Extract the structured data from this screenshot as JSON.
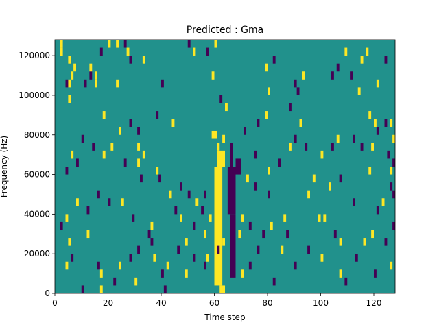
{
  "chart_data": {
    "type": "heatmap",
    "title": "Predicted : Gma",
    "xlabel": "Time step",
    "ylabel": "Frequency (Hz)",
    "xlim": [
      0,
      128
    ],
    "ylim": [
      0,
      128000
    ],
    "x_ticks": [
      0,
      20,
      40,
      60,
      80,
      100,
      120
    ],
    "y_ticks": [
      0,
      20000,
      40000,
      60000,
      80000,
      100000,
      120000
    ],
    "x_tick_labels": [
      "0",
      "20",
      "40",
      "60",
      "80",
      "100",
      "120"
    ],
    "y_tick_labels": [
      "0",
      "20000",
      "40000",
      "60000",
      "80000",
      "100000",
      "120000"
    ],
    "grid": false,
    "colors": {
      "background": "#21918c",
      "high": "#fde725",
      "low": "#440154"
    },
    "cell_height_hz": 4000,
    "value_levels": {
      "low": -1,
      "background": 0,
      "high": 1
    },
    "bands": [
      {
        "level": "high",
        "x": [
          60,
          63
        ],
        "y": [
          4000,
          64000
        ]
      },
      {
        "level": "high",
        "x": [
          61,
          64
        ],
        "y": [
          64000,
          72000
        ]
      },
      {
        "level": "high",
        "x": [
          62,
          64
        ],
        "y": [
          0,
          4000
        ]
      },
      {
        "level": "high",
        "x": [
          61,
          62
        ],
        "y": [
          72000,
          76000
        ]
      },
      {
        "level": "high",
        "x": [
          63,
          64
        ],
        "y": [
          76000,
          80000
        ]
      },
      {
        "level": "high",
        "x": [
          59,
          61
        ],
        "y": [
          78000,
          82000
        ]
      },
      {
        "level": "low",
        "x": [
          65,
          68
        ],
        "y": [
          40000,
          64000
        ]
      },
      {
        "level": "low",
        "x": [
          66,
          68
        ],
        "y": [
          8000,
          40000
        ]
      },
      {
        "level": "low",
        "x": [
          68,
          70
        ],
        "y": [
          60000,
          68000
        ]
      },
      {
        "level": "low",
        "x": [
          66,
          67
        ],
        "y": [
          64000,
          76000
        ]
      }
    ],
    "points": [
      {
        "x": 2,
        "y": 124000,
        "level": "high"
      },
      {
        "x": 2,
        "y": 120000,
        "level": "high"
      },
      {
        "x": 5,
        "y": 116000,
        "level": "high"
      },
      {
        "x": 7,
        "y": 112000,
        "level": "high"
      },
      {
        "x": 5,
        "y": 104000,
        "level": "high"
      },
      {
        "x": 6,
        "y": 108000,
        "level": "high"
      },
      {
        "x": 5,
        "y": 96000,
        "level": "high"
      },
      {
        "x": 4,
        "y": 104000,
        "level": "low"
      },
      {
        "x": 11,
        "y": 104000,
        "level": "low"
      },
      {
        "x": 15,
        "y": 104000,
        "level": "high"
      },
      {
        "x": 15,
        "y": 108000,
        "level": "high"
      },
      {
        "x": 23,
        "y": 104000,
        "level": "high"
      },
      {
        "x": 18,
        "y": 88000,
        "level": "high"
      },
      {
        "x": 13,
        "y": 108000,
        "level": "low"
      },
      {
        "x": 13,
        "y": 112000,
        "level": "high"
      },
      {
        "x": 20,
        "y": 124000,
        "level": "high"
      },
      {
        "x": 17,
        "y": 120000,
        "level": "low"
      },
      {
        "x": 23,
        "y": 124000,
        "level": "high"
      },
      {
        "x": 26,
        "y": 124000,
        "level": "low"
      },
      {
        "x": 27,
        "y": 120000,
        "level": "high"
      },
      {
        "x": 28,
        "y": 116000,
        "level": "low"
      },
      {
        "x": 33,
        "y": 116000,
        "level": "high"
      },
      {
        "x": 38,
        "y": 88000,
        "level": "low"
      },
      {
        "x": 24,
        "y": 80000,
        "level": "high"
      },
      {
        "x": 31,
        "y": 80000,
        "level": "low"
      },
      {
        "x": 28,
        "y": 84000,
        "level": "low"
      },
      {
        "x": 40,
        "y": 104000,
        "level": "low"
      },
      {
        "x": 44,
        "y": 84000,
        "level": "high"
      },
      {
        "x": 52,
        "y": 120000,
        "level": "high"
      },
      {
        "x": 50,
        "y": 124000,
        "level": "low"
      },
      {
        "x": 60,
        "y": 124000,
        "level": "high"
      },
      {
        "x": 57,
        "y": 120000,
        "level": "low"
      },
      {
        "x": 59,
        "y": 108000,
        "level": "high"
      },
      {
        "x": 64,
        "y": 92000,
        "level": "high"
      },
      {
        "x": 62,
        "y": 96000,
        "level": "low"
      },
      {
        "x": 79,
        "y": 112000,
        "level": "high"
      },
      {
        "x": 80,
        "y": 100000,
        "level": "high"
      },
      {
        "x": 82,
        "y": 116000,
        "level": "low"
      },
      {
        "x": 90,
        "y": 104000,
        "level": "low"
      },
      {
        "x": 93,
        "y": 108000,
        "level": "high"
      },
      {
        "x": 91,
        "y": 100000,
        "level": "low"
      },
      {
        "x": 88,
        "y": 92000,
        "level": "low"
      },
      {
        "x": 104,
        "y": 108000,
        "level": "low"
      },
      {
        "x": 106,
        "y": 112000,
        "level": "low"
      },
      {
        "x": 109,
        "y": 120000,
        "level": "high"
      },
      {
        "x": 111,
        "y": 108000,
        "level": "low"
      },
      {
        "x": 115,
        "y": 116000,
        "level": "high"
      },
      {
        "x": 117,
        "y": 120000,
        "level": "high"
      },
      {
        "x": 114,
        "y": 100000,
        "level": "high"
      },
      {
        "x": 118,
        "y": 88000,
        "level": "high"
      },
      {
        "x": 120,
        "y": 84000,
        "level": "high"
      },
      {
        "x": 124,
        "y": 84000,
        "level": "low"
      },
      {
        "x": 126,
        "y": 84000,
        "level": "high"
      },
      {
        "x": 124,
        "y": 116000,
        "level": "low"
      },
      {
        "x": 121,
        "y": 104000,
        "level": "high"
      },
      {
        "x": 10,
        "y": 76000,
        "level": "low"
      },
      {
        "x": 14,
        "y": 72000,
        "level": "low"
      },
      {
        "x": 18,
        "y": 68000,
        "level": "high"
      },
      {
        "x": 6,
        "y": 68000,
        "level": "high"
      },
      {
        "x": 8,
        "y": 64000,
        "level": "low"
      },
      {
        "x": 4,
        "y": 60000,
        "level": "low"
      },
      {
        "x": 21,
        "y": 72000,
        "level": "high"
      },
      {
        "x": 26,
        "y": 64000,
        "level": "low"
      },
      {
        "x": 31,
        "y": 64000,
        "level": "high"
      },
      {
        "x": 31,
        "y": 72000,
        "level": "high"
      },
      {
        "x": 33,
        "y": 68000,
        "level": "high"
      },
      {
        "x": 38,
        "y": 60000,
        "level": "high"
      },
      {
        "x": 32,
        "y": 56000,
        "level": "low"
      },
      {
        "x": 39,
        "y": 56000,
        "level": "low"
      },
      {
        "x": 43,
        "y": 48000,
        "level": "high"
      },
      {
        "x": 50,
        "y": 48000,
        "level": "low"
      },
      {
        "x": 47,
        "y": 52000,
        "level": "low"
      },
      {
        "x": 56,
        "y": 48000,
        "level": "low"
      },
      {
        "x": 45,
        "y": 40000,
        "level": "low"
      },
      {
        "x": 47,
        "y": 36000,
        "level": "high"
      },
      {
        "x": 55,
        "y": 40000,
        "level": "low"
      },
      {
        "x": 52,
        "y": 32000,
        "level": "low"
      },
      {
        "x": 56,
        "y": 28000,
        "level": "high"
      },
      {
        "x": 49,
        "y": 24000,
        "level": "high"
      },
      {
        "x": 46,
        "y": 20000,
        "level": "low"
      },
      {
        "x": 52,
        "y": 16000,
        "level": "low"
      },
      {
        "x": 57,
        "y": 16000,
        "level": "high"
      },
      {
        "x": 56,
        "y": 12000,
        "level": "low"
      },
      {
        "x": 49,
        "y": 8000,
        "level": "high"
      },
      {
        "x": 42,
        "y": 12000,
        "level": "high"
      },
      {
        "x": 40,
        "y": 8000,
        "level": "low"
      },
      {
        "x": 37,
        "y": 16000,
        "level": "high"
      },
      {
        "x": 36,
        "y": 24000,
        "level": "low"
      },
      {
        "x": 29,
        "y": 36000,
        "level": "low"
      },
      {
        "x": 25,
        "y": 44000,
        "level": "high"
      },
      {
        "x": 20,
        "y": 44000,
        "level": "low"
      },
      {
        "x": 16,
        "y": 48000,
        "level": "low"
      },
      {
        "x": 12,
        "y": 40000,
        "level": "low"
      },
      {
        "x": 8,
        "y": 44000,
        "level": "high"
      },
      {
        "x": 4,
        "y": 36000,
        "level": "high"
      },
      {
        "x": 2,
        "y": 32000,
        "level": "low"
      },
      {
        "x": 5,
        "y": 24000,
        "level": "high"
      },
      {
        "x": 4,
        "y": 12000,
        "level": "high"
      },
      {
        "x": 6,
        "y": 16000,
        "level": "low"
      },
      {
        "x": 16,
        "y": 12000,
        "level": "low"
      },
      {
        "x": 17,
        "y": 8000,
        "level": "high"
      },
      {
        "x": 22,
        "y": 4000,
        "level": "low"
      },
      {
        "x": 17,
        "y": 0,
        "level": "high"
      },
      {
        "x": 24,
        "y": 12000,
        "level": "high"
      },
      {
        "x": 28,
        "y": 16000,
        "level": "low"
      },
      {
        "x": 31,
        "y": 20000,
        "level": "low"
      },
      {
        "x": 35,
        "y": 28000,
        "level": "low"
      },
      {
        "x": 36,
        "y": 32000,
        "level": "high"
      },
      {
        "x": 41,
        "y": 0,
        "level": "low"
      },
      {
        "x": 10,
        "y": 0,
        "level": "low"
      },
      {
        "x": 30,
        "y": 4000,
        "level": "high"
      },
      {
        "x": 12,
        "y": 28000,
        "level": "high"
      },
      {
        "x": 80,
        "y": 48000,
        "level": "low"
      },
      {
        "x": 75,
        "y": 52000,
        "level": "low"
      },
      {
        "x": 73,
        "y": 32000,
        "level": "low"
      },
      {
        "x": 78,
        "y": 28000,
        "level": "low"
      },
      {
        "x": 81,
        "y": 32000,
        "level": "high"
      },
      {
        "x": 76,
        "y": 20000,
        "level": "low"
      },
      {
        "x": 73,
        "y": 12000,
        "level": "low"
      },
      {
        "x": 82,
        "y": 4000,
        "level": "low"
      },
      {
        "x": 87,
        "y": 28000,
        "level": "low"
      },
      {
        "x": 90,
        "y": 12000,
        "level": "low"
      },
      {
        "x": 95,
        "y": 20000,
        "level": "low"
      },
      {
        "x": 101,
        "y": 36000,
        "level": "high"
      },
      {
        "x": 107,
        "y": 24000,
        "level": "high"
      },
      {
        "x": 105,
        "y": 28000,
        "level": "low"
      },
      {
        "x": 113,
        "y": 16000,
        "level": "low"
      },
      {
        "x": 116,
        "y": 24000,
        "level": "high"
      },
      {
        "x": 119,
        "y": 28000,
        "level": "high"
      },
      {
        "x": 121,
        "y": 40000,
        "level": "low"
      },
      {
        "x": 123,
        "y": 44000,
        "level": "high"
      },
      {
        "x": 126,
        "y": 52000,
        "level": "low"
      },
      {
        "x": 127,
        "y": 48000,
        "level": "low"
      },
      {
        "x": 126,
        "y": 60000,
        "level": "high"
      },
      {
        "x": 127,
        "y": 64000,
        "level": "low"
      },
      {
        "x": 125,
        "y": 68000,
        "level": "low"
      },
      {
        "x": 119,
        "y": 72000,
        "level": "high"
      },
      {
        "x": 115,
        "y": 72000,
        "level": "low"
      },
      {
        "x": 112,
        "y": 76000,
        "level": "low"
      },
      {
        "x": 106,
        "y": 76000,
        "level": "high"
      },
      {
        "x": 104,
        "y": 72000,
        "level": "low"
      },
      {
        "x": 100,
        "y": 68000,
        "level": "high"
      },
      {
        "x": 94,
        "y": 72000,
        "level": "low"
      },
      {
        "x": 88,
        "y": 72000,
        "level": "high"
      },
      {
        "x": 84,
        "y": 64000,
        "level": "low"
      },
      {
        "x": 80,
        "y": 60000,
        "level": "high"
      },
      {
        "x": 75,
        "y": 68000,
        "level": "low"
      },
      {
        "x": 72,
        "y": 56000,
        "level": "high"
      },
      {
        "x": 71,
        "y": 80000,
        "level": "low"
      },
      {
        "x": 76,
        "y": 84000,
        "level": "low"
      },
      {
        "x": 79,
        "y": 88000,
        "level": "high"
      },
      {
        "x": 90,
        "y": 76000,
        "level": "low"
      },
      {
        "x": 92,
        "y": 84000,
        "level": "high"
      },
      {
        "x": 97,
        "y": 56000,
        "level": "high"
      },
      {
        "x": 95,
        "y": 48000,
        "level": "high"
      },
      {
        "x": 99,
        "y": 36000,
        "level": "high"
      },
      {
        "x": 103,
        "y": 52000,
        "level": "high"
      },
      {
        "x": 107,
        "y": 56000,
        "level": "low"
      },
      {
        "x": 112,
        "y": 44000,
        "level": "low"
      },
      {
        "x": 118,
        "y": 60000,
        "level": "high"
      },
      {
        "x": 121,
        "y": 80000,
        "level": "low"
      },
      {
        "x": 127,
        "y": 76000,
        "level": "high"
      },
      {
        "x": 109,
        "y": 4000,
        "level": "low"
      },
      {
        "x": 107,
        "y": 8000,
        "level": "high"
      },
      {
        "x": 100,
        "y": 16000,
        "level": "high"
      },
      {
        "x": 120,
        "y": 8000,
        "level": "low"
      },
      {
        "x": 126,
        "y": 12000,
        "level": "high"
      },
      {
        "x": 124,
        "y": 24000,
        "level": "low"
      },
      {
        "x": 127,
        "y": 32000,
        "level": "low"
      },
      {
        "x": 86,
        "y": 36000,
        "level": "high"
      },
      {
        "x": 85,
        "y": 20000,
        "level": "high"
      },
      {
        "x": 70,
        "y": 36000,
        "level": "high"
      },
      {
        "x": 69,
        "y": 28000,
        "level": "high"
      },
      {
        "x": 70,
        "y": 8000,
        "level": "high"
      },
      {
        "x": 61,
        "y": 20000,
        "level": "low"
      },
      {
        "x": 63,
        "y": 24000,
        "level": "high"
      },
      {
        "x": 58,
        "y": 36000,
        "level": "high"
      },
      {
        "x": 53,
        "y": 44000,
        "level": "high"
      }
    ]
  }
}
